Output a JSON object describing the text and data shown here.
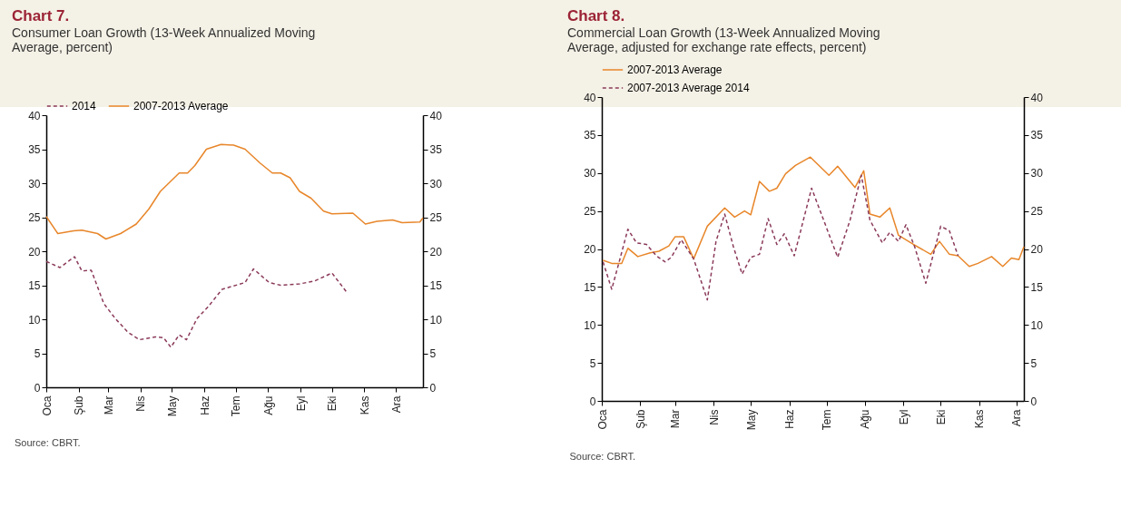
{
  "chart_data": [
    {
      "type": "line",
      "title": "Chart 7.",
      "subtitle": "Consumer Loan Growth (13-Week Annualized Moving Average, percent)",
      "annotations": [
        "Source: CBRT."
      ],
      "xlim": [
        "--01-01",
        "--12-27"
      ],
      "xticks": [
        {
          "value": "--01-01",
          "label": "Oca"
        },
        {
          "value": "--02-01",
          "label": "Şub"
        },
        {
          "value": "--03-01",
          "label": "Mar"
        },
        {
          "value": "--04-01",
          "label": "Nis"
        },
        {
          "value": "--05-01",
          "label": "May"
        },
        {
          "value": "--06-01",
          "label": "Haz"
        },
        {
          "value": "--07-01",
          "label": "Tem"
        },
        {
          "value": "--08-01",
          "label": "Ağu"
        },
        {
          "value": "--09-01",
          "label": "Eyl"
        },
        {
          "value": "--10-01",
          "label": "Eki"
        },
        {
          "value": "--11-01",
          "label": "Kas"
        },
        {
          "value": "--12-01",
          "label": "Ara"
        }
      ],
      "ylim": [
        0,
        40
      ],
      "yticks": [
        0,
        5,
        10,
        15,
        20,
        25,
        30,
        35,
        40
      ],
      "y2lim": [
        0,
        40
      ],
      "y2ticks": [
        0,
        5,
        10,
        15,
        20,
        25,
        30,
        35,
        40
      ],
      "legend": "top",
      "marker": "none",
      "grid": false,
      "series": [
        {
          "name": "2014",
          "color": "#8b3a5a",
          "line_style": "dashed",
          "x": [
            "--01-01",
            "--01-14",
            "--01-28",
            "--02-04",
            "--02-13",
            "--02-25",
            "--03-08",
            "--03-20",
            "--03-31",
            "--04-15",
            "--04-23",
            "--04-30",
            "--05-08",
            "--05-15",
            "--05-25",
            "--06-05",
            "--06-18",
            "--07-10",
            "--07-18",
            "--08-02",
            "--08-13",
            "--08-31",
            "--09-14",
            "--10-01",
            "--10-16"
          ],
          "values": [
            18.5,
            17.6,
            19.2,
            17.1,
            17.2,
            12.3,
            10.1,
            8.1,
            7,
            7.4,
            7.3,
            5.9,
            7.7,
            7,
            10.1,
            11.9,
            14.4,
            15.4,
            17.4,
            15.4,
            15,
            15.2,
            15.6,
            16.8,
            13.8
          ]
        },
        {
          "name": "2007-2013 Average",
          "color": "#e8862a",
          "line_style": "solid",
          "x": [
            "--01-01",
            "--01-12",
            "--01-27",
            "--02-04",
            "--02-19",
            "--02-27",
            "--03-13",
            "--03-28",
            "--04-09",
            "--04-20",
            "--05-08",
            "--05-16",
            "--05-23",
            "--06-03",
            "--06-17",
            "--06-29",
            "--07-10",
            "--07-24",
            "--08-05",
            "--08-13",
            "--08-22",
            "--08-31",
            "--09-11",
            "--09-23",
            "--10-01",
            "--10-21",
            "--11-02",
            "--11-13",
            "--11-28",
            "--12-07",
            "--12-24",
            "--12-27"
          ],
          "values": [
            25.1,
            22.6,
            23,
            23.1,
            22.6,
            21.8,
            22.6,
            24,
            26.2,
            28.8,
            31.5,
            31.5,
            32.6,
            35,
            35.7,
            35.6,
            35,
            33,
            31.5,
            31.5,
            30.8,
            28.8,
            27.8,
            25.9,
            25.5,
            25.6,
            24,
            24.4,
            24.6,
            24.2,
            24.3,
            24.9
          ]
        }
      ]
    },
    {
      "type": "line",
      "title": "Chart 8.",
      "subtitle": "Commercial Loan Growth (13-Week Annualized Moving Average, adjusted for exchange rate effects, percent)",
      "annotations": [
        "Source: CBRT."
      ],
      "xlim": [
        "--01-01",
        "--12-07"
      ],
      "xticks": [
        {
          "value": "--01-01",
          "label": "Oca"
        },
        {
          "value": "--02-01",
          "label": "Şub"
        },
        {
          "value": "--03-01",
          "label": "Mar"
        },
        {
          "value": "--04-01",
          "label": "Nis"
        },
        {
          "value": "--05-01",
          "label": "May"
        },
        {
          "value": "--06-01",
          "label": "Haz"
        },
        {
          "value": "--07-01",
          "label": "Tem"
        },
        {
          "value": "--08-01",
          "label": "Ağu"
        },
        {
          "value": "--09-01",
          "label": "Eyl"
        },
        {
          "value": "--10-01",
          "label": "Eki"
        },
        {
          "value": "--11-01",
          "label": "Kas"
        },
        {
          "value": "--12-01",
          "label": "Ara"
        }
      ],
      "ylim": [
        0,
        40
      ],
      "yticks": [
        0,
        5,
        10,
        15,
        20,
        25,
        30,
        35,
        40
      ],
      "y2lim": [
        0,
        40
      ],
      "y2ticks": [
        0,
        5,
        10,
        15,
        20,
        25,
        30,
        35,
        40
      ],
      "legend": "top",
      "marker": "none",
      "grid": false,
      "series": [
        {
          "name": "2007-2013 Average",
          "color": "#e8862a",
          "line_style": "solid",
          "x": [
            "--01-02",
            "--01-09",
            "--01-17",
            "--01-22",
            "--01-30",
            "--02-09",
            "--02-16",
            "--02-24",
            "--03-01",
            "--03-08",
            "--03-16",
            "--03-27",
            "--04-10",
            "--04-18",
            "--04-26",
            "--05-01",
            "--05-08",
            "--05-16",
            "--05-22",
            "--05-29",
            "--06-06",
            "--06-18",
            "--07-03",
            "--07-10",
            "--07-24",
            "--07-31",
            "--08-05",
            "--08-13",
            "--08-21",
            "--08-28",
            "--09-09",
            "--09-23",
            "--09-30",
            "--10-08",
            "--10-15",
            "--10-24",
            "--10-31",
            "--11-11",
            "--11-20",
            "--11-27",
            "--12-03",
            "--12-07"
          ],
          "values": [
            18.5,
            18.1,
            18.1,
            20.1,
            19,
            19.5,
            19.7,
            20.4,
            21.6,
            21.6,
            18.7,
            23,
            25.4,
            24.2,
            25,
            24.5,
            28.9,
            27.6,
            28,
            29.9,
            31,
            32.1,
            29.7,
            30.9,
            28.1,
            30.3,
            24.6,
            24.2,
            25.4,
            21.8,
            20.6,
            19.3,
            21,
            19.3,
            19.1,
            17.7,
            18.1,
            19,
            17.7,
            18.8,
            18.6,
            20.3
          ]
        },
        {
          "name": "2007-2013 Average 2014",
          "color": "#8b3a5a",
          "line_style": "dashed",
          "x": [
            "--01-02",
            "--01-09",
            "--01-15",
            "--01-22",
            "--01-29",
            "--02-06",
            "--02-14",
            "--02-21",
            "--02-26",
            "--03-06",
            "--03-16",
            "--03-27",
            "--04-03",
            "--04-10",
            "--04-17",
            "--04-24",
            "--05-01",
            "--05-08",
            "--05-15",
            "--05-22",
            "--05-28",
            "--06-05",
            "--06-19",
            "--07-10",
            "--07-20",
            "--07-29",
            "--08-05",
            "--08-15",
            "--08-21",
            "--08-28",
            "--09-03",
            "--09-10",
            "--09-19",
            "--10-01",
            "--10-08",
            "--10-15"
          ],
          "values": [
            18.3,
            14.7,
            18.3,
            22.6,
            20.8,
            20.6,
            19.1,
            18.3,
            18.9,
            21.2,
            18.7,
            13.3,
            21,
            24.6,
            20.3,
            16.7,
            18.9,
            19.3,
            24,
            20.6,
            22,
            19.1,
            28,
            18.9,
            23.8,
            29.7,
            23.8,
            20.8,
            22.2,
            21,
            23.2,
            20.3,
            15.5,
            23,
            22.4,
            19.1
          ]
        }
      ]
    }
  ]
}
